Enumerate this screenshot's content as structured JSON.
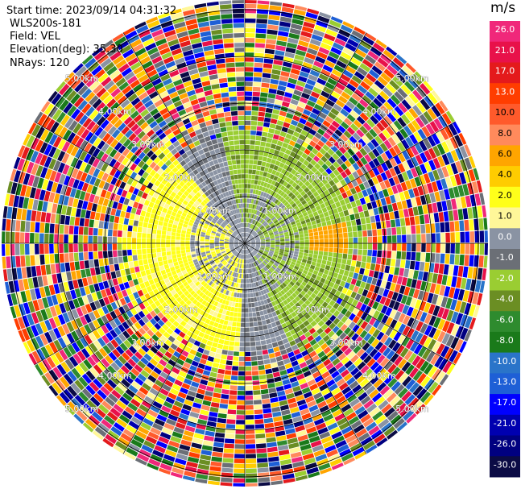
{
  "info": {
    "start_time": "Start time: 2023/09/14 04:31:32",
    "instrument": "WLS200s-181",
    "field": "Field: VEL",
    "elevation": "Elevation(deg): 35.30",
    "nrays": "NRays: 120"
  },
  "colorbar": {
    "unit": "m/s",
    "ticks": [
      "26.0",
      "21.0",
      "17.0",
      "13.0",
      "10.0",
      "8.0",
      "6.0",
      "4.0",
      "2.0",
      "1.0",
      "0.0",
      "-1.0",
      "-2.0",
      "-4.0",
      "-6.0",
      "-8.0",
      "-10.0",
      "-13.0",
      "-17.0",
      "-21.0",
      "-26.0",
      "-30.0"
    ],
    "colors": [
      "#f0287a",
      "#e8114a",
      "#e41a1c",
      "#ff3d00",
      "#ff5a2b",
      "#ff8a5c",
      "#ffa500",
      "#ffcc00",
      "#ffff1a",
      "#fff799",
      "#8a93a3",
      "#6b6f76",
      "#9acd32",
      "#6b8e23",
      "#2e8b2e",
      "#1a7a1a",
      "#2a74c9",
      "#1e5fd6",
      "#0000ff",
      "#0000b0",
      "#000080",
      "#0b0b45"
    ]
  },
  "range_rings": {
    "labels": [
      "1.00km",
      "2.00km",
      "3.00km",
      "4.00km",
      "5.00km"
    ]
  }
}
